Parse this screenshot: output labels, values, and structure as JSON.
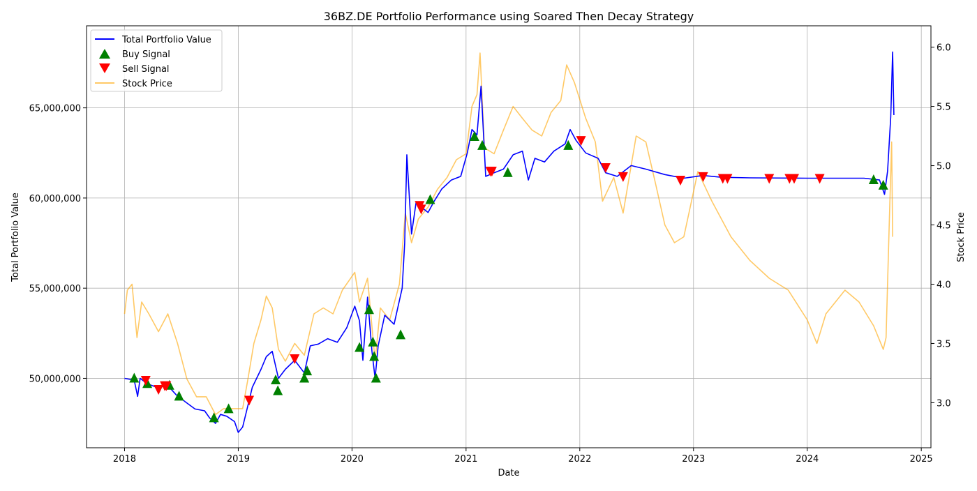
{
  "chart_data": {
    "type": "line",
    "title": "36BZ.DE Portfolio Performance using Soared Then Decay Strategy",
    "xlabel": "Date",
    "ylabel_left": "Total Portfolio Value",
    "ylabel_right": "Stock Price",
    "x_ticks": [
      "2018",
      "2019",
      "2020",
      "2021",
      "2022",
      "2023",
      "2024",
      "2025"
    ],
    "y_left_ticks": [
      "50,000,000",
      "55,000,000",
      "60,000,000",
      "65,000,000"
    ],
    "y_right_ticks": [
      "3.0",
      "3.5",
      "4.0",
      "4.5",
      "5.0",
      "5.5",
      "6.0"
    ],
    "x_range": [
      "2017-09-01",
      "2025-02-01"
    ],
    "y_left_range": [
      46150000,
      69550000
    ],
    "y_right_range": [
      2.62,
      6.18
    ],
    "grid": true,
    "legend_position": "top-left",
    "legend": [
      "Total Portfolio Value",
      "Buy Signal",
      "Sell Signal",
      "Stock Price"
    ],
    "colors": {
      "portfolio": "#0000ff",
      "buy": "#008000",
      "sell": "#ff0000",
      "price": "#ffa500"
    },
    "series": [
      {
        "name": "Total Portfolio Value",
        "axis": "left",
        "points": [
          [
            "2018-01-01",
            50000000
          ],
          [
            "2018-02-01",
            49900000
          ],
          [
            "2018-02-12",
            49000000
          ],
          [
            "2018-02-20",
            50000000
          ],
          [
            "2018-03-15",
            49700000
          ],
          [
            "2018-04-15",
            49500000
          ],
          [
            "2018-05-20",
            49600000
          ],
          [
            "2018-06-15",
            49100000
          ],
          [
            "2018-07-15",
            48700000
          ],
          [
            "2018-08-15",
            48300000
          ],
          [
            "2018-09-15",
            48200000
          ],
          [
            "2018-10-01",
            47800000
          ],
          [
            "2018-10-20",
            47500000
          ],
          [
            "2018-11-05",
            48000000
          ],
          [
            "2018-11-25",
            47900000
          ],
          [
            "2018-12-20",
            47600000
          ],
          [
            "2019-01-01",
            47000000
          ],
          [
            "2019-01-15",
            47300000
          ],
          [
            "2019-02-01",
            48500000
          ],
          [
            "2019-02-15",
            49500000
          ],
          [
            "2019-03-15",
            50500000
          ],
          [
            "2019-04-01",
            51200000
          ],
          [
            "2019-04-20",
            51500000
          ],
          [
            "2019-05-10",
            50000000
          ],
          [
            "2019-06-01",
            50500000
          ],
          [
            "2019-07-01",
            51000000
          ],
          [
            "2019-08-01",
            50300000
          ],
          [
            "2019-08-20",
            51800000
          ],
          [
            "2019-09-15",
            51900000
          ],
          [
            "2019-10-15",
            52200000
          ],
          [
            "2019-11-15",
            52000000
          ],
          [
            "2019-12-15",
            52800000
          ],
          [
            "2020-01-10",
            54000000
          ],
          [
            "2020-01-25",
            53200000
          ],
          [
            "2020-02-05",
            51000000
          ],
          [
            "2020-02-20",
            54500000
          ],
          [
            "2020-03-05",
            51500000
          ],
          [
            "2020-03-15",
            50000000
          ],
          [
            "2020-03-25",
            51800000
          ],
          [
            "2020-04-15",
            53500000
          ],
          [
            "2020-05-15",
            53000000
          ],
          [
            "2020-06-10",
            55000000
          ],
          [
            "2020-06-18",
            57500000
          ],
          [
            "2020-06-25",
            62400000
          ],
          [
            "2020-07-10",
            58000000
          ],
          [
            "2020-07-25",
            59800000
          ],
          [
            "2020-08-10",
            59500000
          ],
          [
            "2020-09-01",
            59200000
          ],
          [
            "2020-09-20",
            59800000
          ],
          [
            "2020-10-15",
            60500000
          ],
          [
            "2020-11-15",
            61000000
          ],
          [
            "2020-12-15",
            61200000
          ],
          [
            "2021-01-05",
            62500000
          ],
          [
            "2021-01-20",
            63800000
          ],
          [
            "2021-02-05",
            63500000
          ],
          [
            "2021-02-18",
            66200000
          ],
          [
            "2021-03-05",
            61200000
          ],
          [
            "2021-04-01",
            61400000
          ],
          [
            "2021-05-01",
            61600000
          ],
          [
            "2021-06-01",
            62400000
          ],
          [
            "2021-07-01",
            62600000
          ],
          [
            "2021-07-20",
            61000000
          ],
          [
            "2021-08-10",
            62200000
          ],
          [
            "2021-09-10",
            62000000
          ],
          [
            "2021-10-10",
            62600000
          ],
          [
            "2021-11-15",
            63000000
          ],
          [
            "2021-12-01",
            63800000
          ],
          [
            "2021-12-20",
            63200000
          ],
          [
            "2022-01-20",
            62500000
          ],
          [
            "2022-03-01",
            62200000
          ],
          [
            "2022-03-25",
            61400000
          ],
          [
            "2022-05-01",
            61200000
          ],
          [
            "2022-06-15",
            61800000
          ],
          [
            "2022-08-01",
            61600000
          ],
          [
            "2022-10-01",
            61300000
          ],
          [
            "2022-12-01",
            61100000
          ],
          [
            "2023-02-01",
            61250000
          ],
          [
            "2023-04-01",
            61150000
          ],
          [
            "2023-07-01",
            61120000
          ],
          [
            "2024-01-01",
            61100000
          ],
          [
            "2024-07-01",
            61100000
          ],
          [
            "2024-08-20",
            61000000
          ],
          [
            "2024-09-05",
            60200000
          ],
          [
            "2024-09-15",
            61500000
          ],
          [
            "2024-09-25",
            64500000
          ],
          [
            "2024-10-01",
            68100000
          ],
          [
            "2024-10-05",
            64600000
          ]
        ]
      },
      {
        "name": "Stock Price",
        "axis": "right",
        "points": [
          [
            "2018-01-01",
            3.75
          ],
          [
            "2018-01-10",
            3.95
          ],
          [
            "2018-01-25",
            4.0
          ],
          [
            "2018-02-10",
            3.55
          ],
          [
            "2018-02-25",
            3.85
          ],
          [
            "2018-03-20",
            3.75
          ],
          [
            "2018-04-20",
            3.6
          ],
          [
            "2018-05-20",
            3.75
          ],
          [
            "2018-06-20",
            3.5
          ],
          [
            "2018-07-20",
            3.2
          ],
          [
            "2018-08-20",
            3.05
          ],
          [
            "2018-09-20",
            3.05
          ],
          [
            "2018-10-20",
            2.9
          ],
          [
            "2018-11-15",
            2.95
          ],
          [
            "2018-12-15",
            2.95
          ],
          [
            "2019-01-15",
            2.95
          ],
          [
            "2019-02-01",
            3.2
          ],
          [
            "2019-02-20",
            3.5
          ],
          [
            "2019-03-15",
            3.7
          ],
          [
            "2019-04-01",
            3.9
          ],
          [
            "2019-04-20",
            3.8
          ],
          [
            "2019-05-10",
            3.45
          ],
          [
            "2019-06-01",
            3.35
          ],
          [
            "2019-07-01",
            3.5
          ],
          [
            "2019-08-01",
            3.4
          ],
          [
            "2019-09-01",
            3.75
          ],
          [
            "2019-10-01",
            3.8
          ],
          [
            "2019-11-01",
            3.75
          ],
          [
            "2019-12-01",
            3.95
          ],
          [
            "2020-01-10",
            4.1
          ],
          [
            "2020-01-25",
            3.85
          ],
          [
            "2020-02-20",
            4.05
          ],
          [
            "2020-03-15",
            3.35
          ],
          [
            "2020-04-01",
            3.8
          ],
          [
            "2020-05-01",
            3.7
          ],
          [
            "2020-06-01",
            4.0
          ],
          [
            "2020-06-20",
            4.6
          ],
          [
            "2020-07-10",
            4.35
          ],
          [
            "2020-08-01",
            4.55
          ],
          [
            "2020-09-01",
            4.65
          ],
          [
            "2020-10-01",
            4.8
          ],
          [
            "2020-11-01",
            4.9
          ],
          [
            "2020-12-01",
            5.05
          ],
          [
            "2021-01-01",
            5.1
          ],
          [
            "2021-01-20",
            5.5
          ],
          [
            "2021-02-05",
            5.6
          ],
          [
            "2021-02-15",
            5.95
          ],
          [
            "2021-03-01",
            5.15
          ],
          [
            "2021-04-01",
            5.1
          ],
          [
            "2021-05-01",
            5.3
          ],
          [
            "2021-06-01",
            5.5
          ],
          [
            "2021-07-01",
            5.4
          ],
          [
            "2021-08-01",
            5.3
          ],
          [
            "2021-09-01",
            5.25
          ],
          [
            "2021-10-01",
            5.45
          ],
          [
            "2021-11-01",
            5.55
          ],
          [
            "2021-11-20",
            5.85
          ],
          [
            "2021-12-15",
            5.7
          ],
          [
            "2022-01-20",
            5.4
          ],
          [
            "2022-02-20",
            5.2
          ],
          [
            "2022-03-15",
            4.7
          ],
          [
            "2022-04-20",
            4.9
          ],
          [
            "2022-05-20",
            4.6
          ],
          [
            "2022-07-01",
            5.25
          ],
          [
            "2022-08-01",
            5.2
          ],
          [
            "2022-09-01",
            4.85
          ],
          [
            "2022-10-01",
            4.5
          ],
          [
            "2022-11-01",
            4.35
          ],
          [
            "2022-12-01",
            4.4
          ],
          [
            "2023-01-15",
            4.95
          ],
          [
            "2023-03-01",
            4.7
          ],
          [
            "2023-05-01",
            4.4
          ],
          [
            "2023-07-01",
            4.2
          ],
          [
            "2023-09-01",
            4.05
          ],
          [
            "2023-11-01",
            3.95
          ],
          [
            "2024-01-01",
            3.7
          ],
          [
            "2024-02-01",
            3.5
          ],
          [
            "2024-03-01",
            3.75
          ],
          [
            "2024-05-01",
            3.95
          ],
          [
            "2024-06-15",
            3.85
          ],
          [
            "2024-08-01",
            3.65
          ],
          [
            "2024-09-01",
            3.45
          ],
          [
            "2024-09-10",
            3.55
          ],
          [
            "2024-09-20",
            4.5
          ],
          [
            "2024-09-28",
            5.2
          ],
          [
            "2024-10-01",
            4.4
          ]
        ]
      }
    ],
    "buy_signals": [
      [
        "2018-02-01",
        50000000
      ],
      [
        "2018-03-15",
        49700000
      ],
      [
        "2018-05-25",
        49600000
      ],
      [
        "2018-06-25",
        49000000
      ],
      [
        "2018-10-15",
        47800000
      ],
      [
        "2018-12-01",
        48300000
      ],
      [
        "2019-05-01",
        49900000
      ],
      [
        "2019-05-08",
        49300000
      ],
      [
        "2019-08-01",
        50000000
      ],
      [
        "2019-08-10",
        50400000
      ],
      [
        "2020-01-25",
        51700000
      ],
      [
        "2020-02-25",
        53800000
      ],
      [
        "2020-03-08",
        52000000
      ],
      [
        "2020-03-12",
        51200000
      ],
      [
        "2020-03-18",
        50000000
      ],
      [
        "2020-06-05",
        52400000
      ],
      [
        "2020-09-08",
        59900000
      ],
      [
        "2021-01-28",
        63400000
      ],
      [
        "2021-02-22",
        62900000
      ],
      [
        "2021-05-15",
        61400000
      ],
      [
        "2021-11-25",
        62900000
      ],
      [
        "2024-08-01",
        61000000
      ],
      [
        "2024-09-01",
        60700000
      ]
    ],
    "sell_signals": [
      [
        "2018-03-10",
        49900000
      ],
      [
        "2018-04-20",
        49400000
      ],
      [
        "2018-05-10",
        49600000
      ],
      [
        "2018-05-15",
        49600000
      ],
      [
        "2019-02-05",
        48800000
      ],
      [
        "2019-07-01",
        51100000
      ],
      [
        "2020-08-05",
        59600000
      ],
      [
        "2020-08-10",
        59400000
      ],
      [
        "2021-03-20",
        61500000
      ],
      [
        "2021-03-25",
        61500000
      ],
      [
        "2022-01-05",
        63200000
      ],
      [
        "2022-03-25",
        61700000
      ],
      [
        "2022-05-20",
        61200000
      ],
      [
        "2022-11-20",
        61000000
      ],
      [
        "2023-02-01",
        61200000
      ],
      [
        "2023-04-05",
        61100000
      ],
      [
        "2023-04-20",
        61100000
      ],
      [
        "2023-09-01",
        61100000
      ],
      [
        "2023-11-05",
        61100000
      ],
      [
        "2023-11-20",
        61100000
      ],
      [
        "2024-02-10",
        61100000
      ]
    ]
  }
}
